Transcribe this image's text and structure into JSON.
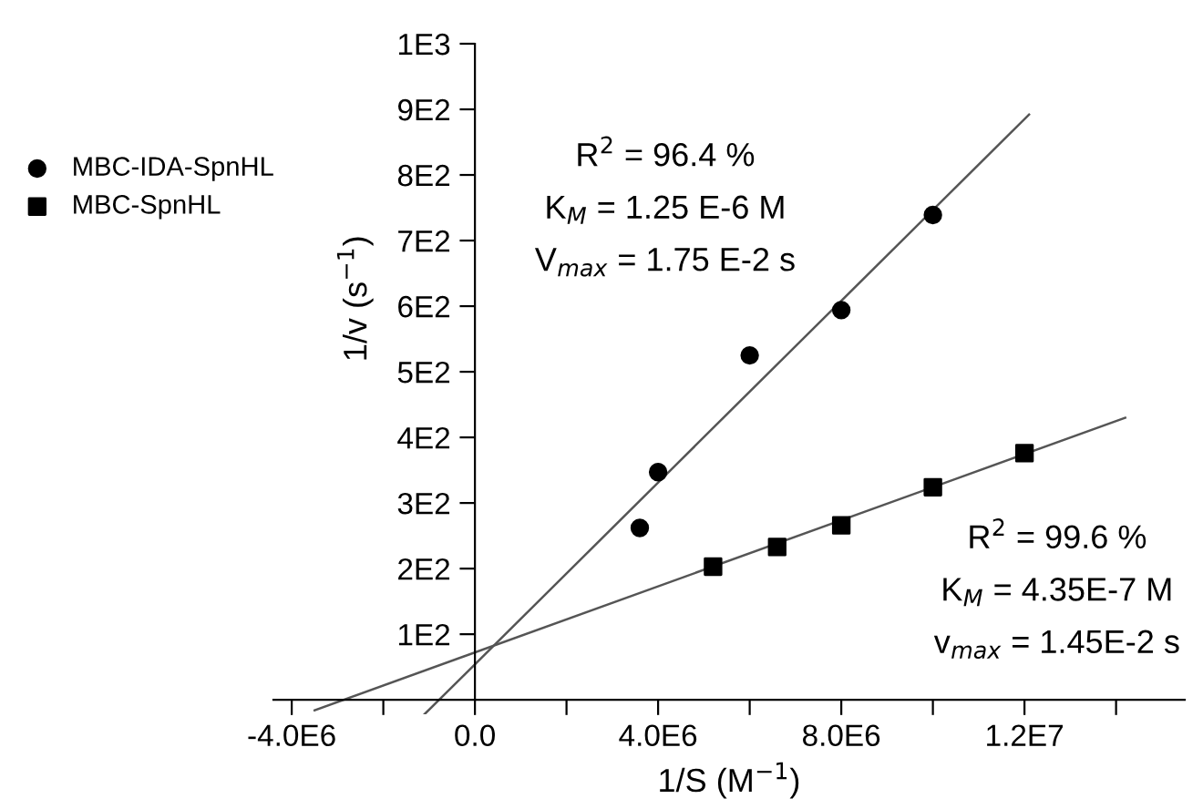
{
  "chart_data": {
    "type": "scatter",
    "xlabel": "1/S (M$^{−1}$)",
    "ylabel": "1/v (s$^{−1}$)",
    "series": [
      {
        "name": "MBC-IDA-SpnHL",
        "color": "#000000",
        "marker": "circle",
        "x": [
          3600000.0,
          4000000.0,
          6000000.0,
          8000000.0,
          10000000.0
        ],
        "values": [
          262,
          347,
          525,
          594,
          739
        ]
      },
      {
        "name": "MBC-SpnHL",
        "color": "#000000",
        "marker": "square",
        "x": [
          5200000.0,
          6600000.0,
          8000000.0,
          10000000.0,
          12000000.0
        ],
        "values": [
          203,
          233,
          266,
          324,
          376
        ]
      },
      {
        "type": "line",
        "color": "#555555",
        "x": [
          -1100000.0,
          12100000.0
        ],
        "values": [
          -22,
          892
        ]
      },
      {
        "type": "line",
        "color": "#555555",
        "x": [
          -3500000.0,
          14200000.0
        ],
        "values": [
          -16,
          430
        ]
      }
    ],
    "xlim": [
      -4400000.0,
      15500000.0
    ],
    "ylim": [
      -22,
      1000
    ],
    "xticks": [
      {
        "value": -4000000.0,
        "label": "-4.0E6"
      },
      {
        "value": -2000000.0,
        "label": null
      },
      {
        "value": 0,
        "label": "0.0"
      },
      {
        "value": 2000000.0,
        "label": null
      },
      {
        "value": 4000000.0,
        "label": "4.0E6"
      },
      {
        "value": 6000000.0,
        "label": null
      },
      {
        "value": 8000000.0,
        "label": "8.0E6"
      },
      {
        "value": 10000000.0,
        "label": null
      },
      {
        "value": 12000000.0,
        "label": "1.2E7"
      },
      {
        "value": 14000000.0,
        "label": null
      }
    ],
    "yticks": [
      {
        "value": 100,
        "label": "1E2"
      },
      {
        "value": 200,
        "label": "2E2"
      },
      {
        "value": 300,
        "label": "3E2"
      },
      {
        "value": 400,
        "label": "4E2"
      },
      {
        "value": 500,
        "label": "5E2"
      },
      {
        "value": 600,
        "label": "6E2"
      },
      {
        "value": 700,
        "label": "7E2"
      },
      {
        "value": 800,
        "label": "8E2"
      },
      {
        "value": 900,
        "label": "9E2"
      },
      {
        "value": 1000,
        "label": "1E3"
      }
    ],
    "grid": false,
    "legend": "left",
    "annotations": [
      "R$^{2}$ = 96.4 %",
      "K$_{M}$ = 1.25 E-6 M",
      "V$_{max}$ = 1.75 E-2 s",
      "R$^{2}$ = 99.6 %",
      "K$_{M}$ = 4.35E-7 M",
      "v$_{max}$ = 1.45E-2 s"
    ]
  }
}
